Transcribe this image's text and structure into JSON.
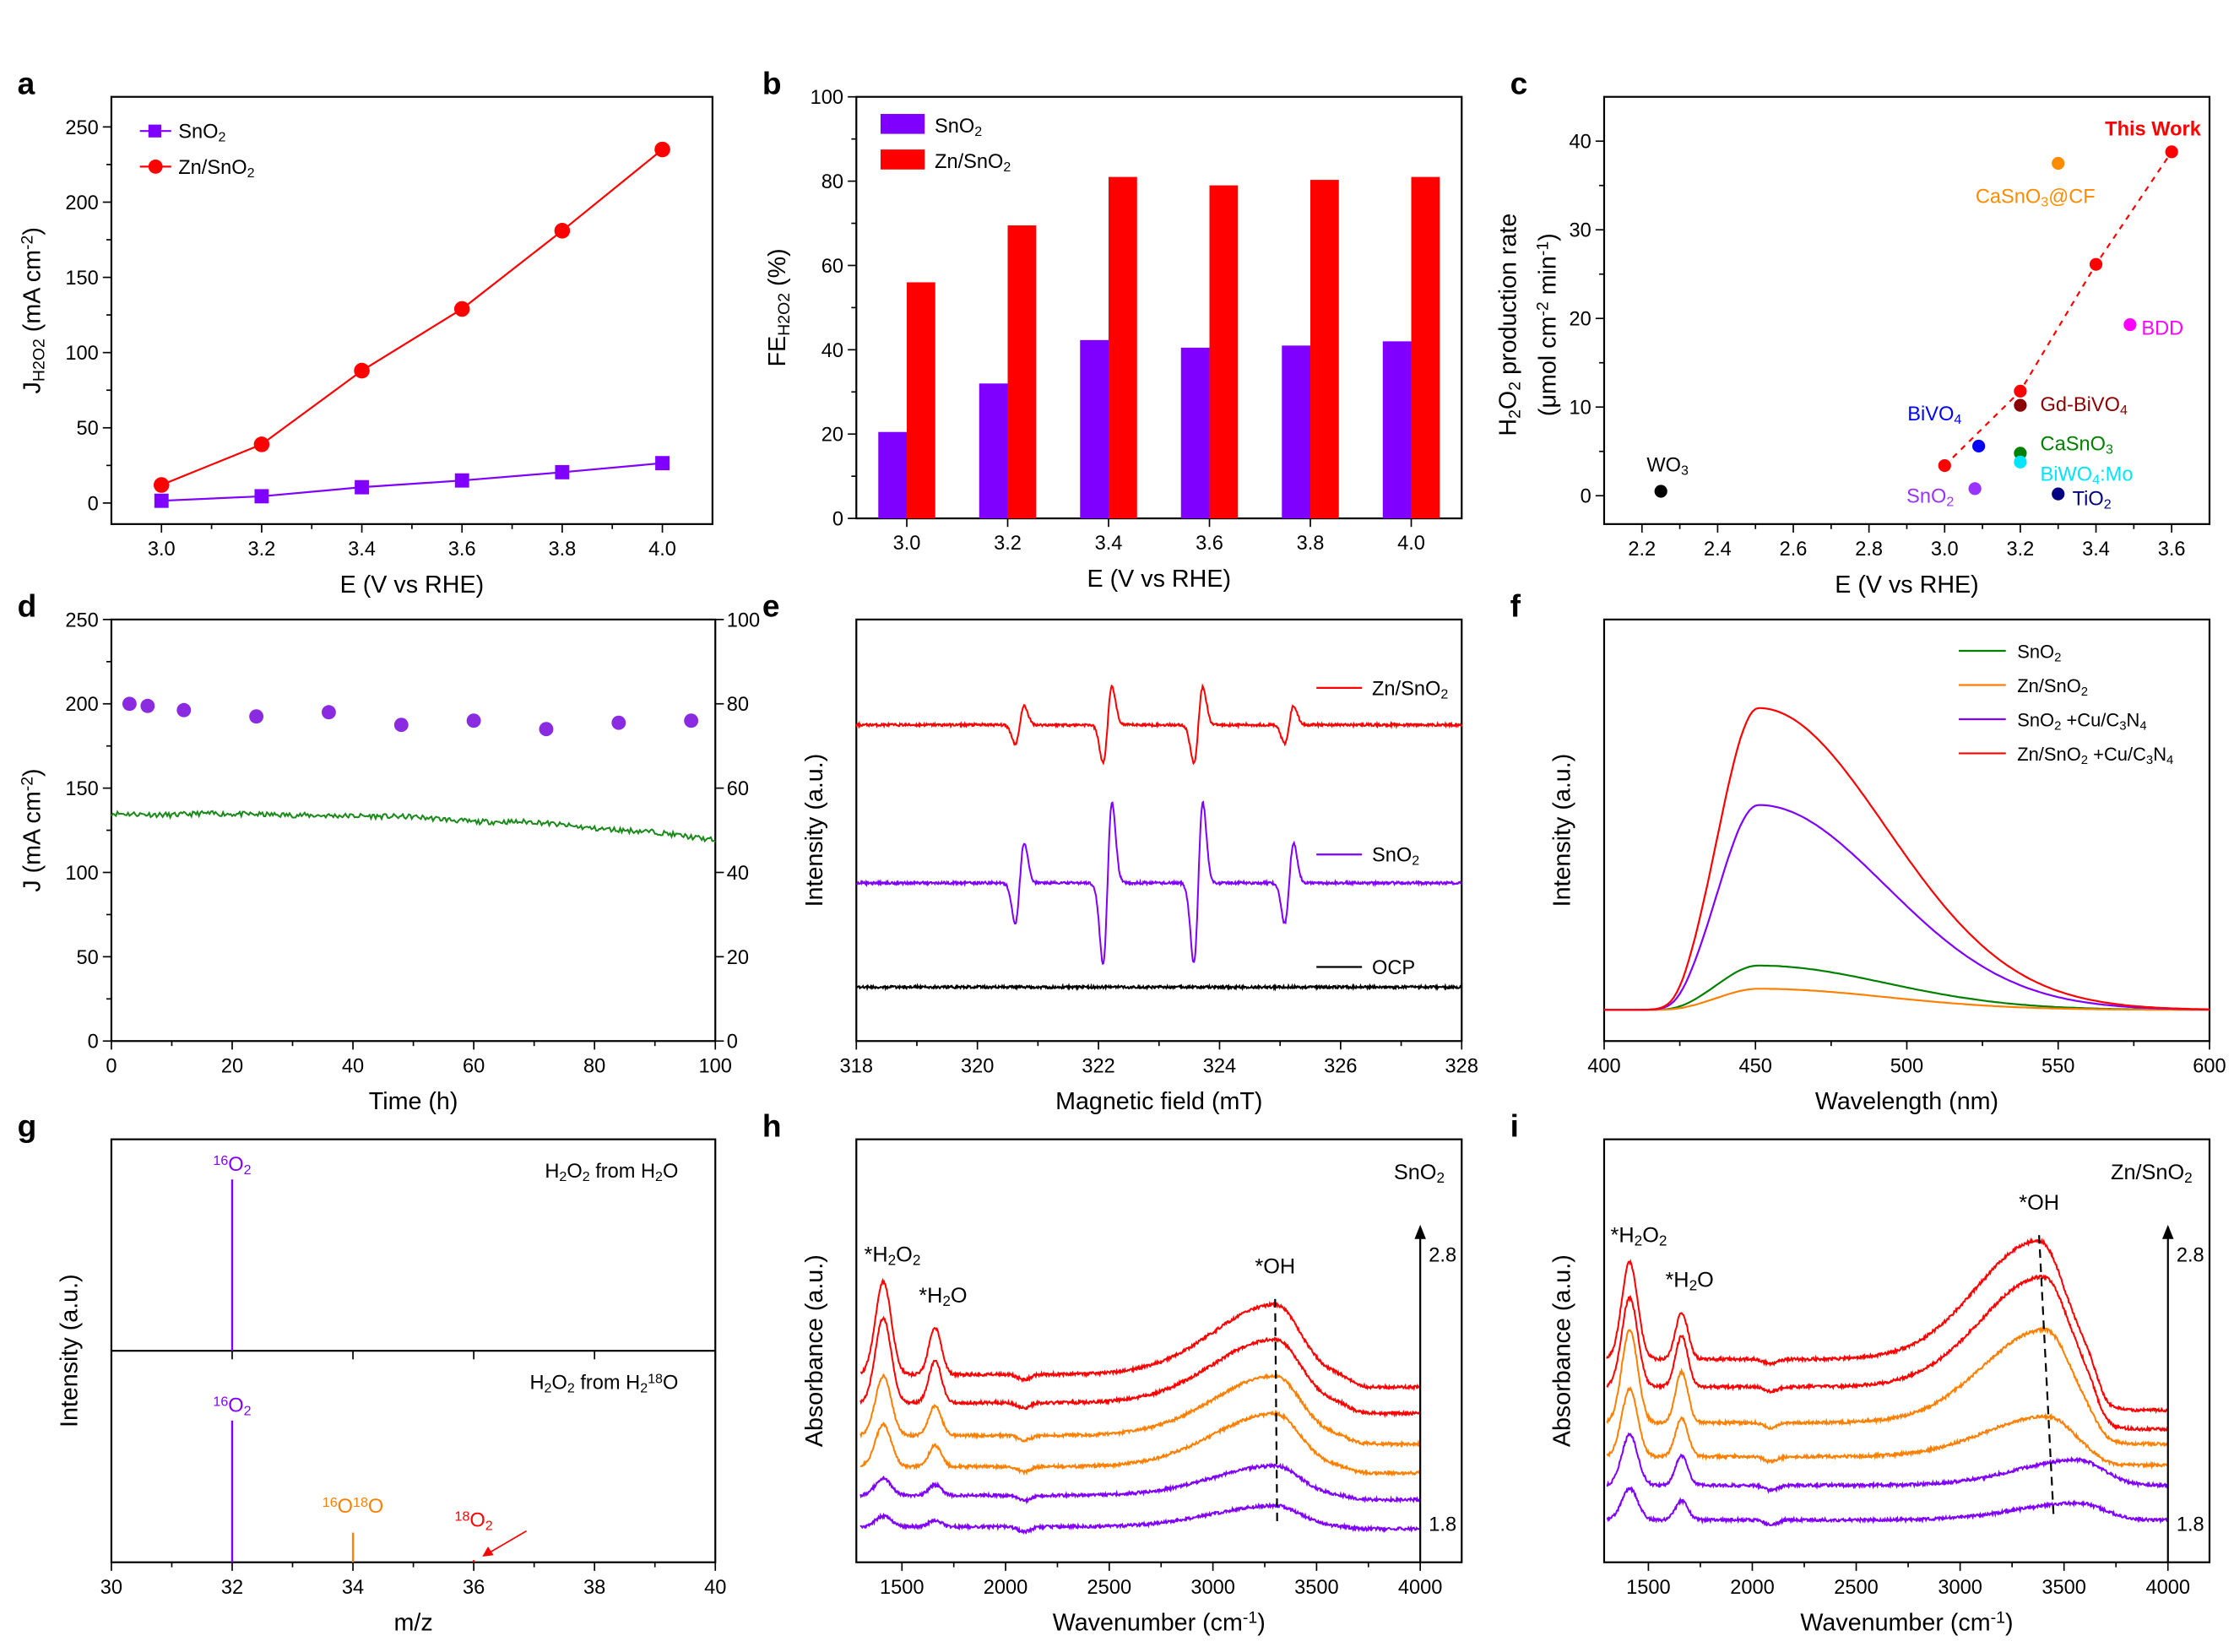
{
  "chart_data": [
    {
      "id": "a",
      "letter": "a",
      "type": "line",
      "xlabel": [
        "E (V vs RHE)"
      ],
      "ylabel": [
        "J",
        [
          "H2O2",
          "sub"
        ],
        " (mA cm",
        [
          "-2",
          "sup"
        ],
        ")"
      ],
      "xlim": [
        2.9,
        4.1
      ],
      "ylim": [
        -14,
        270
      ],
      "xticks": [
        "3.0",
        "3.2",
        "3.4",
        "3.6",
        "3.8",
        "4.0"
      ],
      "yticks": [
        "0",
        "50",
        "100",
        "150",
        "200",
        "250"
      ],
      "legend": "top-left",
      "x": [
        3.0,
        3.2,
        3.4,
        3.6,
        3.8,
        4.0
      ],
      "series": [
        {
          "name": [
            "SnO",
            [
              "2",
              "sub"
            ]
          ],
          "marker": "square",
          "color": "#8000ff",
          "values": [
            1.5,
            4.5,
            10.5,
            15,
            20.5,
            26.5
          ]
        },
        {
          "name": [
            "Zn/SnO",
            [
              "2",
              "sub"
            ]
          ],
          "marker": "circle",
          "color": "#ff0000",
          "values": [
            12,
            39,
            88,
            129,
            181,
            235
          ]
        }
      ]
    },
    {
      "id": "b",
      "letter": "b",
      "type": "bar",
      "xlabel": [
        "E (V vs RHE)"
      ],
      "ylabel": [
        "FE",
        [
          "H2O2",
          "sub"
        ],
        " (%)"
      ],
      "ylim": [
        0,
        100
      ],
      "yticks": [
        "0",
        "20",
        "40",
        "60",
        "80",
        "100"
      ],
      "categories": [
        "3.0",
        "3.2",
        "3.4",
        "3.6",
        "3.8",
        "4.0"
      ],
      "legend": "top-left",
      "series": [
        {
          "name": [
            "SnO",
            [
              "2",
              "sub"
            ]
          ],
          "color": "#8000ff",
          "values": [
            20.5,
            32,
            42.3,
            40.5,
            41,
            42
          ]
        },
        {
          "name": [
            "Zn/SnO",
            [
              "2",
              "sub"
            ]
          ],
          "color": "#ff0000",
          "values": [
            56,
            69.5,
            81,
            79,
            80.3,
            81
          ]
        }
      ]
    },
    {
      "id": "c",
      "letter": "c",
      "type": "scatter",
      "xlabel": [
        "E (V vs RHE)"
      ],
      "ylabel": [
        "H",
        [
          "2",
          "sub"
        ],
        "O",
        [
          "2",
          "sub"
        ],
        " production rate"
      ],
      "ylabel2": [
        "(μmol cm",
        [
          "-2",
          "sup"
        ],
        " min",
        [
          "-1",
          "sup"
        ],
        ")"
      ],
      "xlim": [
        2.1,
        3.7
      ],
      "ylim": [
        -3.2,
        45
      ],
      "xticks": [
        "2.2",
        "2.4",
        "2.6",
        "2.8",
        "3.0",
        "3.2",
        "3.4",
        "3.6"
      ],
      "yticks": [
        "0",
        "10",
        "20",
        "30",
        "40"
      ],
      "points": [
        {
          "label": [
            "WO",
            [
              "3",
              "sub"
            ]
          ],
          "color": "#000000",
          "x": 2.25,
          "y": 0.5
        },
        {
          "label": [
            "SnO",
            [
              "2",
              "sub"
            ]
          ],
          "color": "#9933ff",
          "x": 3.08,
          "y": 0.8
        },
        {
          "label": [
            "BiVO",
            [
              "4",
              "sub"
            ]
          ],
          "color": "#0000ff",
          "x": 3.09,
          "y": 5.6
        },
        {
          "label": [
            "TiO",
            [
              "2",
              "sub"
            ]
          ],
          "color": "#000080",
          "x": 3.3,
          "y": 0.2
        },
        {
          "label": [
            "CaSnO",
            [
              "3",
              "sub"
            ]
          ],
          "color": "#008000",
          "x": 3.2,
          "y": 4.8
        },
        {
          "label": [
            "BiWO",
            [
              "4",
              "sub"
            ],
            ":Mo"
          ],
          "color": "#00e5ff",
          "x": 3.2,
          "y": 3.8
        },
        {
          "label": [
            "Gd-BiVO",
            [
              "4",
              "sub"
            ]
          ],
          "color": "#8b0000",
          "x": 3.2,
          "y": 10.2
        },
        {
          "label": [
            "BDD"
          ],
          "color": "#ff00ff",
          "x": 3.49,
          "y": 19.3
        },
        {
          "label": [
            "CaSnO",
            [
              "3",
              "sub"
            ],
            "@CF"
          ],
          "color": "#ff8c00",
          "x": 3.3,
          "y": 37.5
        }
      ],
      "this_work": {
        "label": [
          "This Work"
        ],
        "color": "#ff0000",
        "fit": "dashed",
        "points": [
          [
            3.0,
            3.4
          ],
          [
            3.2,
            11.8
          ],
          [
            3.4,
            26.1
          ],
          [
            3.6,
            38.8
          ]
        ]
      }
    },
    {
      "id": "d",
      "letter": "d",
      "type": "line",
      "xlabel": [
        "Time (h)"
      ],
      "ylabel": [
        "J (mA cm",
        [
          "-2",
          "sup"
        ],
        ")"
      ],
      "xlim": [
        0,
        100
      ],
      "ylim": [
        0,
        250
      ],
      "y2lim": [
        0,
        100
      ],
      "xticks": [
        "0",
        "20",
        "40",
        "60",
        "80",
        "100"
      ],
      "yticks": [
        "0",
        "50",
        "100",
        "150",
        "200",
        "250"
      ],
      "y2ticks": [
        "0",
        "20",
        "40",
        "60",
        "80",
        "100"
      ],
      "current": {
        "color": "#1a8a1a",
        "axis": "left",
        "trend": [
          [
            0,
            135
          ],
          [
            10,
            134
          ],
          [
            15,
            135
          ],
          [
            30,
            134
          ],
          [
            50,
            133
          ],
          [
            60,
            130
          ],
          [
            70,
            130
          ],
          [
            80,
            126
          ],
          [
            90,
            124
          ],
          [
            100,
            119
          ]
        ]
      },
      "fe": {
        "color": "#8a2be2",
        "axis": "right",
        "x": [
          3,
          6,
          12,
          24,
          36,
          48,
          60,
          72,
          84,
          96
        ],
        "y": [
          80,
          79.5,
          78.5,
          77,
          78,
          75,
          76,
          74,
          75.5,
          76
        ]
      }
    },
    {
      "id": "e",
      "letter": "e",
      "type": "line",
      "xlabel": [
        "Magnetic field (mT)"
      ],
      "ylabel": [
        "Intensity (a.u.)"
      ],
      "xlim": [
        318,
        328
      ],
      "ylim": [
        0,
        10
      ],
      "xticks": [
        "318",
        "320",
        "322",
        "324",
        "326",
        "328"
      ],
      "line_positions_mT": [
        320.7,
        322.15,
        323.65,
        325.15
      ],
      "line_ratio": [
        1,
        2,
        2,
        1
      ],
      "series": [
        {
          "name": [
            "Zn/SnO",
            [
              "2",
              "sub"
            ]
          ],
          "color": "#ff0000",
          "offset": 7.5,
          "amplitude": 0.45
        },
        {
          "name": [
            "SnO",
            [
              "2",
              "sub"
            ]
          ],
          "color": "#8000ff",
          "offset": 3.75,
          "amplitude": 0.95
        },
        {
          "name": [
            "OCP"
          ],
          "color": "#000000",
          "offset": 1.28,
          "amplitude": 0
        }
      ]
    },
    {
      "id": "f",
      "letter": "f",
      "type": "line",
      "xlabel": [
        "Wavelength (nm)"
      ],
      "ylabel": [
        "Intensity (a.u.)"
      ],
      "xlim": [
        400,
        600
      ],
      "ylim": [
        0,
        10
      ],
      "xticks": [
        "400",
        "450",
        "500",
        "550",
        "600"
      ],
      "peak_nm": 451,
      "baseline": 0.74,
      "legend": "top-right",
      "series": [
        {
          "name": [
            "SnO",
            [
              "2",
              "sub"
            ]
          ],
          "color": "#008000",
          "peak": 1.05
        },
        {
          "name": [
            "Zn/SnO",
            [
              "2",
              "sub"
            ]
          ],
          "color": "#ff8000",
          "peak": 0.5
        },
        {
          "name": [
            "SnO",
            [
              "2",
              "sub"
            ],
            " +Cu/C",
            [
              "3",
              "sub"
            ],
            "N",
            [
              "4",
              "sub"
            ]
          ],
          "color": "#8000ff",
          "peak": 4.86
        },
        {
          "name": [
            "Zn/SnO",
            [
              "2",
              "sub"
            ],
            " +Cu/C",
            [
              "3",
              "sub"
            ],
            "N",
            [
              "4",
              "sub"
            ]
          ],
          "color": "#ff0000",
          "peak": 7.16
        }
      ]
    },
    {
      "id": "g",
      "letter": "g",
      "type": "bar",
      "xlabel": [
        "m/z"
      ],
      "ylabel": [
        "Intensity (a.u.)"
      ],
      "xlim": [
        30,
        40
      ],
      "xticks": [
        "30",
        "32",
        "34",
        "36",
        "38",
        "40"
      ],
      "subplots": [
        {
          "title": [
            "H",
            [
              "2",
              "sub"
            ],
            "O",
            [
              "2",
              "sub"
            ],
            " from H",
            [
              "2",
              "sub"
            ],
            "O"
          ],
          "peaks": [
            {
              "mz": 32,
              "intensity": 0.81,
              "color": "#8000ff",
              "label": [
                [
                  "16",
                  "sup"
                ],
                "O",
                [
                  "2",
                  "sub"
                ]
              ]
            }
          ]
        },
        {
          "title": [
            "H",
            [
              "2",
              "sub"
            ],
            "O",
            [
              "2",
              "sub"
            ],
            " from H",
            [
              "2",
              "sub"
            ],
            [
              "18",
              "sup"
            ],
            "O"
          ],
          "peaks": [
            {
              "mz": 32,
              "intensity": 0.67,
              "color": "#8000ff",
              "label": [
                [
                  "16",
                  "sup"
                ],
                "O",
                [
                  "2",
                  "sub"
                ]
              ]
            },
            {
              "mz": 34,
              "intensity": 0.14,
              "color": "#ff8000",
              "label": [
                [
                  "16",
                  "sup"
                ],
                "O",
                [
                  "18",
                  "sup"
                ],
                "O"
              ]
            },
            {
              "mz": 36,
              "intensity": 0.01,
              "color": "#ff0000",
              "label": [
                [
                  "18",
                  "sup"
                ],
                "O",
                [
                  "2",
                  "sub"
                ]
              ]
            }
          ]
        }
      ]
    },
    {
      "id": "h",
      "letter": "h",
      "type": "line",
      "xlabel": [
        "Wavenumber (cm",
        [
          "-1",
          "sup"
        ],
        ")"
      ],
      "ylabel": [
        "Absorbance (a.u.)"
      ],
      "xlim": [
        1280,
        4200
      ],
      "ylim": [
        0,
        10
      ],
      "xticks": [
        "1500",
        "2000",
        "2500",
        "3000",
        "3500",
        "4000"
      ],
      "sample": [
        "SnO",
        [
          "2",
          "sub"
        ]
      ],
      "annotations": {
        "h2o2": [
          "*H",
          [
            "2",
            "sub"
          ],
          "O",
          [
            "2",
            "sub"
          ]
        ],
        "h2o": [
          "*H",
          [
            "2",
            "sub"
          ],
          "O"
        ],
        "oh": [
          "*OH"
        ]
      },
      "potential_top": "2.8",
      "potential_bottom": "1.8",
      "oh_guide": [
        3300,
        3310
      ],
      "curves": [
        {
          "color": "#8000ff",
          "offset": 0.84,
          "p1400": 0.25,
          "p1650": 0.15,
          "oh": 0.5,
          "oh_center": 3300,
          "tail": 0.05
        },
        {
          "color": "#8000ff",
          "offset": 1.58,
          "p1400": 0.4,
          "p1650": 0.25,
          "oh": 0.7,
          "oh_center": 3300,
          "tail": 0.1
        },
        {
          "color": "#ff8000",
          "offset": 2.26,
          "p1400": 1.0,
          "p1650": 0.5,
          "oh": 1.25,
          "oh_center": 3300,
          "tail": 0.15
        },
        {
          "color": "#ff8000",
          "offset": 3.0,
          "p1400": 1.4,
          "p1650": 0.7,
          "oh": 1.4,
          "oh_center": 3300,
          "tail": 0.2
        },
        {
          "color": "#ff0000",
          "offset": 3.77,
          "p1400": 2.0,
          "p1650": 1.0,
          "oh": 1.5,
          "oh_center": 3300,
          "tail": 0.25
        },
        {
          "color": "#ff0000",
          "offset": 4.44,
          "p1400": 2.2,
          "p1650": 1.1,
          "oh": 1.65,
          "oh_center": 3300,
          "tail": 0.3
        }
      ]
    },
    {
      "id": "i",
      "letter": "i",
      "type": "line",
      "xlabel": [
        "Wavenumber (cm",
        [
          "-1",
          "sup"
        ],
        ")"
      ],
      "ylabel": [
        "Absorbance (a.u.)"
      ],
      "xlim": [
        1287,
        4200
      ],
      "ylim": [
        0,
        10
      ],
      "xticks": [
        "1500",
        "2000",
        "2500",
        "3000",
        "3500",
        "4000"
      ],
      "sample": [
        "Zn/SnO",
        [
          "2",
          "sub"
        ]
      ],
      "annotations": {
        "h2o2": [
          "*H",
          [
            "2",
            "sub"
          ],
          "O",
          [
            "2",
            "sub"
          ]
        ],
        "h2o": [
          "*H",
          [
            "2",
            "sub"
          ],
          "O"
        ],
        "oh": [
          "*OH"
        ]
      },
      "potential_top": "2.8",
      "potential_bottom": "1.8",
      "oh_guide": [
        3380,
        3450
      ],
      "curves": [
        {
          "color": "#8000ff",
          "offset": 1.0,
          "p1400": 0.75,
          "p1650": 0.45,
          "oh": 0.4,
          "oh_center": 3570,
          "tail": 0.0
        },
        {
          "color": "#8000ff",
          "offset": 1.82,
          "p1400": 1.2,
          "p1650": 0.7,
          "oh": 0.6,
          "oh_center": 3570,
          "tail": 0.0
        },
        {
          "color": "#ff8000",
          "offset": 2.5,
          "p1400": 1.6,
          "p1650": 0.9,
          "oh": 0.95,
          "oh_center": 3420,
          "tail": 0.2
        },
        {
          "color": "#ff8000",
          "offset": 3.3,
          "p1400": 2.2,
          "p1650": 1.2,
          "oh": 2.2,
          "oh_center": 3410,
          "tail": 0.5
        },
        {
          "color": "#ff0000",
          "offset": 4.15,
          "p1400": 2.1,
          "p1650": 1.2,
          "oh": 2.6,
          "oh_center": 3400,
          "tail": 1.0
        },
        {
          "color": "#ff0000",
          "offset": 4.8,
          "p1400": 2.3,
          "p1650": 1.1,
          "oh": 2.8,
          "oh_center": 3380,
          "tail": 1.2
        }
      ]
    }
  ]
}
